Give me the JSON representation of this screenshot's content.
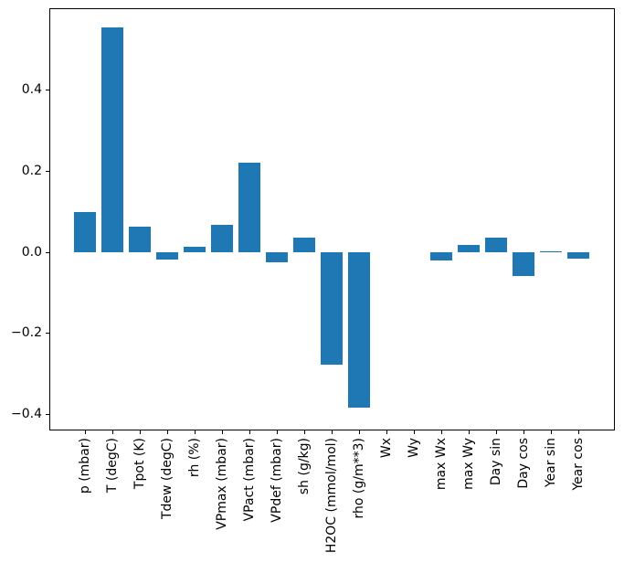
{
  "figure": {
    "background": "#ffffff",
    "axis_color": "#000000",
    "text_color": "#000000"
  },
  "chart_data": {
    "type": "bar",
    "title": "",
    "xlabel": "",
    "ylabel": "",
    "grid": false,
    "legend": null,
    "bar_color": "#1f77b4",
    "ylim": [
      -0.44,
      0.6
    ],
    "categories": [
      "p (mbar)",
      "T (degC)",
      "Tpot (K)",
      "Tdew (degC)",
      "rh (%)",
      "VPmax (mbar)",
      "VPact (mbar)",
      "VPdef (mbar)",
      "sh (g/kg)",
      "H2OC (mmol/mol)",
      "rho (g/m**3)",
      "Wx",
      "Wy",
      "max Wx",
      "max Wy",
      "Day sin",
      "Day cos",
      "Year sin",
      "Year cos"
    ],
    "values": [
      0.099,
      0.553,
      0.063,
      -0.018,
      0.012,
      0.067,
      0.219,
      -0.025,
      0.035,
      -0.278,
      -0.384,
      0.0,
      0.0,
      -0.022,
      0.017,
      0.035,
      -0.059,
      0.002,
      -0.017
    ],
    "yticks": [
      {
        "value": 0.4,
        "label": "0.4"
      },
      {
        "value": 0.2,
        "label": "0.2"
      },
      {
        "value": 0.0,
        "label": "0.0"
      },
      {
        "value": -0.2,
        "label": "−0.2"
      },
      {
        "value": -0.4,
        "label": "−0.4"
      }
    ]
  }
}
